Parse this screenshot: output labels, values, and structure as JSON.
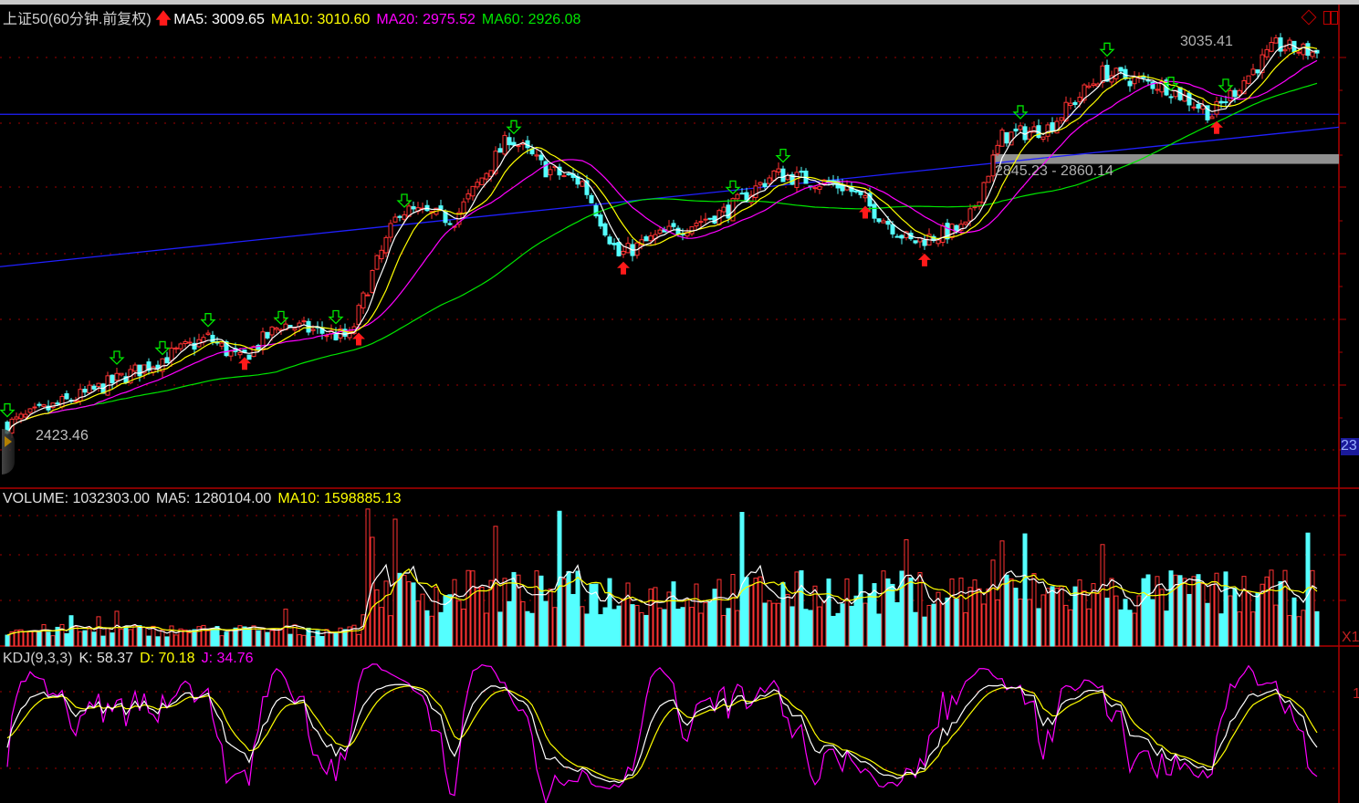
{
  "header": {
    "title": "上证50(60分钟.前复权)",
    "ma5": "MA5: 3009.65",
    "ma10": "MA10: 3010.60",
    "ma20": "MA20: 2975.52",
    "ma60": "MA60: 2926.08"
  },
  "volume_header": {
    "volume": "VOLUME: 1032303.00",
    "ma5": "MA5: 1280104.00",
    "ma10": "MA10: 1598885.13"
  },
  "kdj_header": {
    "name": "KDJ(9,3,3)",
    "k": "K: 58.37",
    "d": "D: 70.18",
    "j": "J: 34.76"
  },
  "annotations": {
    "high_label": "3035.41",
    "low_label": "2423.46",
    "band_label": "2845.23 - 2860.14",
    "axis_tag": "23",
    "volume_scale_tag": "X1",
    "kdj_axis_tick": "1"
  },
  "colors": {
    "up": "#ff3232",
    "down": "#54ffff",
    "ma5": "#ffffff",
    "ma10": "#ffff00",
    "ma20": "#ff00ff",
    "ma60": "#00e600",
    "trendline": "#2020ff",
    "axis": "#b00000",
    "grid": "#a00000"
  },
  "chart_data": {
    "type": "candlestick",
    "bars": 288,
    "price_range": [
      2423.46,
      3035.41
    ],
    "close_waypoints": [
      {
        "bar": 0,
        "close": 2441
      },
      {
        "bar": 18,
        "close": 2491
      },
      {
        "bar": 44,
        "close": 2576
      },
      {
        "bar": 51,
        "close": 2541
      },
      {
        "bar": 60,
        "close": 2597
      },
      {
        "bar": 75,
        "close": 2576
      },
      {
        "bar": 80,
        "close": 2675
      },
      {
        "bar": 86,
        "close": 2774
      },
      {
        "bar": 98,
        "close": 2760
      },
      {
        "bar": 110,
        "close": 2887
      },
      {
        "bar": 118,
        "close": 2837
      },
      {
        "bar": 126,
        "close": 2816
      },
      {
        "bar": 134,
        "close": 2703
      },
      {
        "bar": 142,
        "close": 2731
      },
      {
        "bar": 158,
        "close": 2774
      },
      {
        "bar": 168,
        "close": 2830
      },
      {
        "bar": 184,
        "close": 2809
      },
      {
        "bar": 198,
        "close": 2724
      },
      {
        "bar": 210,
        "close": 2746
      },
      {
        "bar": 218,
        "close": 2887
      },
      {
        "bar": 228,
        "close": 2901
      },
      {
        "bar": 240,
        "close": 2986
      },
      {
        "bar": 254,
        "close": 2965
      },
      {
        "bar": 264,
        "close": 2922
      },
      {
        "bar": 278,
        "close": 3028
      },
      {
        "bar": 287,
        "close": 3017
      }
    ],
    "sell_signals": [
      0,
      24,
      34,
      44,
      60,
      72,
      87,
      111,
      159,
      170,
      222,
      241,
      255,
      267
    ],
    "buy_signals": [
      52,
      77,
      135,
      188,
      201,
      265
    ],
    "horizontal_line": 2922,
    "trend_line": {
      "start": 2686,
      "end": 2902
    },
    "band": [
      2845.23,
      2860.14
    ],
    "volume_range": [
      0,
      3600000
    ],
    "kdj_params": [
      9,
      3,
      3
    ]
  }
}
